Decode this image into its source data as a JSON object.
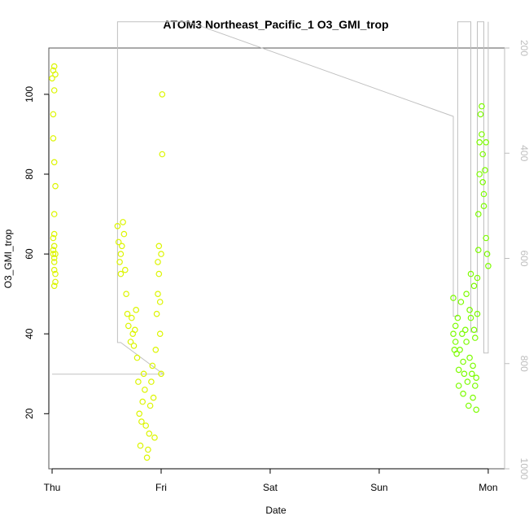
{
  "chart_data": {
    "type": "scatter",
    "title": "ATOM3 Northeast_Pacific_1 O3_GMI_trop",
    "xlabel": "Date",
    "ylabel": "O3_GMI_trop",
    "x_ticks": [
      "Thu",
      "Fri",
      "Sat",
      "Sun",
      "Mon"
    ],
    "xlim": [
      -0.03,
      4.15
    ],
    "ylim": [
      6.2,
      111.6
    ],
    "y_ticks": [
      20,
      40,
      60,
      80,
      100
    ],
    "y2_ticks": [
      200,
      400,
      600,
      800,
      1000
    ],
    "y2lim": [
      1000,
      200
    ],
    "grid": false,
    "colors": {
      "thu_fri": "#dcf500",
      "mon": "#7cfc00",
      "pressure_line": "#c0c0c0"
    },
    "series": [
      {
        "x": [
          0.0,
          0.01,
          0.02,
          0.03,
          0.02,
          0.01,
          0.01,
          0.02,
          0.03,
          0.02,
          0.02,
          0.01,
          0.02,
          0.03,
          0.02,
          0.01,
          0.02,
          0.01,
          0.02,
          0.03,
          0.03,
          0.02,
          0.6,
          0.61,
          0.62,
          0.63,
          0.63,
          0.64,
          0.65,
          0.66,
          0.67,
          0.68,
          0.69,
          0.7,
          0.72,
          0.73,
          0.74,
          0.75,
          0.76,
          0.77,
          0.78,
          0.79,
          0.8,
          0.81,
          0.82,
          0.83,
          0.84,
          0.85,
          0.86,
          0.87,
          0.88,
          0.89,
          0.9,
          0.91,
          0.92,
          0.93,
          0.94,
          0.95,
          0.96,
          0.97,
          0.97,
          0.98,
          0.98,
          0.99,
          0.99,
          1.0,
          1.0,
          1.01,
          1.01
        ],
        "y": [
          104,
          106,
          107,
          105,
          101,
          95,
          89,
          83,
          77,
          70,
          65,
          60,
          56,
          53,
          58,
          61,
          62,
          64,
          59,
          55,
          60,
          52,
          67,
          63,
          58,
          55,
          60,
          62,
          68,
          65,
          56,
          50,
          45,
          42,
          38,
          44,
          40,
          37,
          41,
          46,
          34,
          28,
          20,
          12,
          18,
          23,
          30,
          26,
          17,
          9,
          11,
          15,
          22,
          28,
          32,
          24,
          14,
          36,
          45,
          50,
          58,
          62,
          55,
          48,
          40,
          30,
          60,
          85,
          100
        ],
        "marker": "open-circle"
      },
      {
        "x": [
          3.68,
          3.68,
          3.69,
          3.7,
          3.7,
          3.71,
          3.72,
          3.73,
          3.73,
          3.74,
          3.75,
          3.76,
          3.77,
          3.77,
          3.78,
          3.79,
          3.8,
          3.8,
          3.81,
          3.82,
          3.83,
          3.83,
          3.84,
          3.84,
          3.85,
          3.86,
          3.86,
          3.87,
          3.87,
          3.88,
          3.88,
          3.89,
          3.89,
          3.9,
          3.9,
          3.91,
          3.91,
          3.92,
          3.92,
          3.93,
          3.94,
          3.94,
          3.95,
          3.95,
          3.96,
          3.96,
          3.97,
          3.98,
          3.98,
          3.99,
          4.0
        ],
        "y": [
          49,
          40,
          36,
          38,
          42,
          35,
          44,
          31,
          27,
          36,
          48,
          40,
          33,
          25,
          30,
          41,
          50,
          38,
          28,
          22,
          34,
          46,
          55,
          44,
          30,
          24,
          32,
          41,
          52,
          39,
          27,
          21,
          29,
          45,
          54,
          61,
          70,
          80,
          88,
          95,
          97,
          90,
          85,
          78,
          72,
          75,
          81,
          88,
          64,
          60,
          57
        ],
        "marker": "open-circle"
      }
    ],
    "pressure_line": {
      "note": "right axis (pressure, reversed) shown by thin gray line",
      "x": [
        0.0,
        0.02,
        1.0,
        1.02,
        1.02,
        0.63,
        0.63,
        0.6,
        0.6,
        1.25,
        3.68,
        3.68,
        3.72,
        3.72,
        3.84,
        3.84,
        3.9,
        3.9,
        3.96,
        3.96,
        4.0,
        4.0
      ],
      "y": [
        820,
        820,
        820,
        820,
        820,
        760,
        760,
        760,
        150,
        150,
        330,
        710,
        710,
        150,
        150,
        740,
        740,
        150,
        150,
        780,
        780,
        150
      ]
    }
  }
}
